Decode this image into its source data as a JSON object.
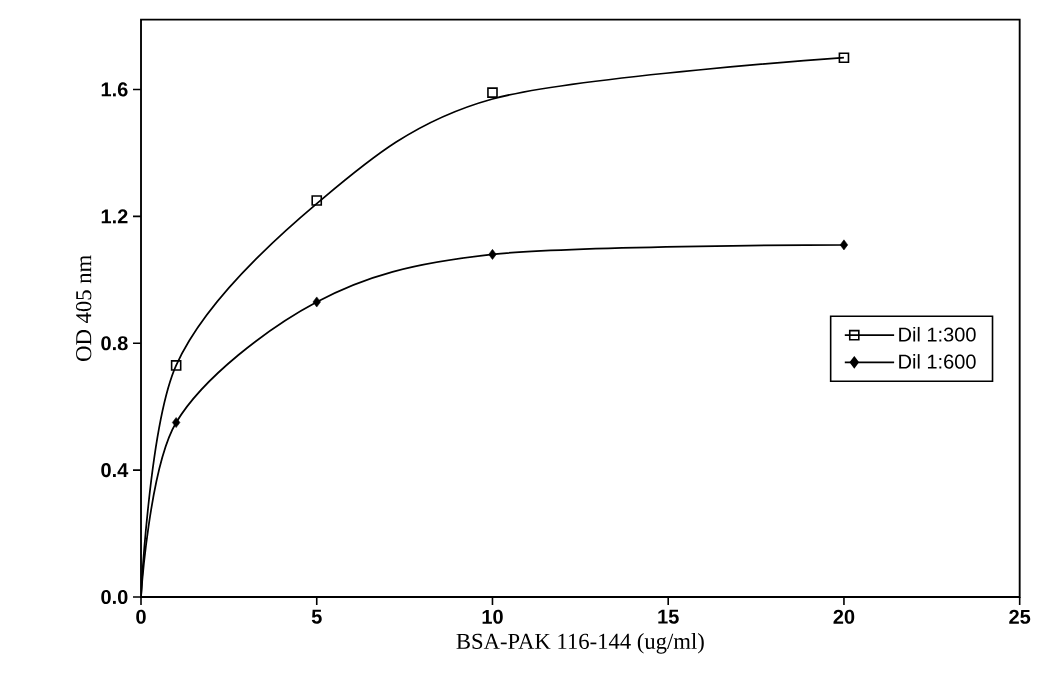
{
  "chart_data": {
    "type": "scatter",
    "xlabel": "BSA-PAK 116-144 (ug/ml)",
    "ylabel": "OD 405 nm",
    "xlim": [
      0,
      25
    ],
    "ylim": [
      0,
      1.82
    ],
    "xticks": [
      0,
      5,
      10,
      15,
      20,
      25
    ],
    "yticks": [
      {
        "value": 0,
        "label": "0.0"
      },
      {
        "value": 0.4,
        "label": "0.4"
      },
      {
        "value": 0.8,
        "label": "0.8"
      },
      {
        "value": 1.2,
        "label": "1.2"
      },
      {
        "value": 1.6,
        "label": "1.6"
      }
    ],
    "grid": false,
    "legend": "right",
    "series": [
      {
        "name": "Dil 1:300",
        "marker": "square",
        "color": "#000000",
        "x": [
          1,
          5,
          10,
          20
        ],
        "values": [
          0.73,
          1.25,
          1.59,
          1.7
        ]
      },
      {
        "name": "Dil 1:600",
        "marker": "diamond",
        "color": "#000000",
        "x": [
          1,
          5,
          10,
          20
        ],
        "values": [
          0.55,
          0.93,
          1.08,
          1.11
        ]
      },
      {
        "type": "line",
        "marker": "none",
        "line_style": "solid",
        "color": "#000000",
        "x": [
          0,
          1,
          5,
          10,
          20
        ],
        "values": [
          0,
          0.73,
          1.24,
          1.57,
          1.7
        ]
      },
      {
        "type": "line",
        "marker": "none",
        "line_style": "solid",
        "color": "#000000",
        "x": [
          0,
          1,
          5,
          10,
          20
        ],
        "values": [
          0,
          0.55,
          0.93,
          1.08,
          1.11
        ]
      }
    ]
  }
}
